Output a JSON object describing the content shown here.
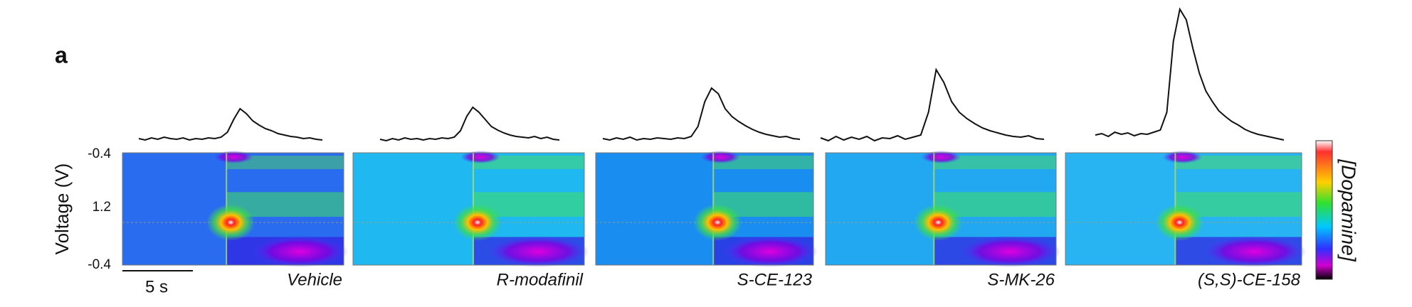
{
  "panel_label": "a",
  "y_axis": {
    "label": "Voltage (V)",
    "tick_labels": [
      "-0.4",
      "1.2",
      "-0.4"
    ]
  },
  "scale_bar": "5 s",
  "colorbar_label": "[Dopamine]",
  "panels": [
    {
      "name": "Vehicle",
      "trace": [
        3,
        1,
        4,
        2,
        5,
        3,
        2,
        4,
        1,
        3,
        2,
        4,
        3,
        5,
        12,
        30,
        45,
        38,
        28,
        22,
        17,
        14,
        10,
        8,
        6,
        5,
        3,
        4,
        2,
        1
      ]
    },
    {
      "name": "R-modafinil",
      "trace": [
        2,
        0,
        3,
        1,
        4,
        2,
        3,
        1,
        3,
        2,
        4,
        3,
        5,
        14,
        34,
        47,
        40,
        30,
        20,
        15,
        11,
        8,
        6,
        5,
        4,
        6,
        3,
        5,
        2,
        1
      ]
    },
    {
      "name": "S-CE-123",
      "trace": [
        3,
        1,
        4,
        2,
        5,
        1,
        3,
        2,
        4,
        3,
        2,
        4,
        3,
        6,
        20,
        55,
        74,
        66,
        45,
        34,
        27,
        21,
        16,
        12,
        9,
        7,
        5,
        6,
        3,
        2
      ]
    },
    {
      "name": "S-MK-26",
      "trace": [
        4,
        0,
        6,
        1,
        5,
        2,
        6,
        0,
        4,
        3,
        7,
        2,
        5,
        8,
        40,
        100,
        82,
        55,
        40,
        31,
        24,
        18,
        14,
        11,
        8,
        6,
        5,
        7,
        3,
        2
      ]
    },
    {
      "name": "(S,S)-CE-158",
      "trace": [
        8,
        10,
        6,
        12,
        9,
        11,
        7,
        10,
        9,
        12,
        15,
        40,
        140,
        185,
        170,
        130,
        95,
        70,
        55,
        42,
        34,
        27,
        22,
        16,
        12,
        9,
        7,
        5,
        3,
        1
      ]
    }
  ]
}
